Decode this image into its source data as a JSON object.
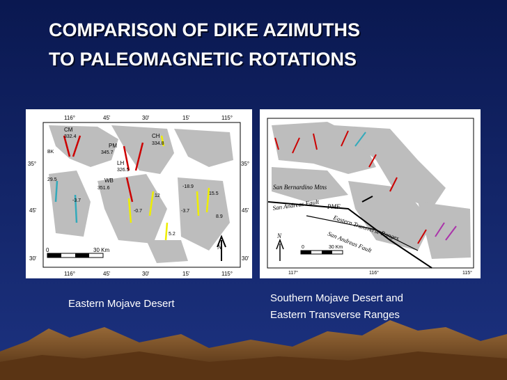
{
  "title": {
    "lines": [
      "COMPARISON OF DIKE AZIMUTHS",
      "TO PALEOMAGNETIC ROTATIONS"
    ]
  },
  "left_map": {
    "labels": [
      "116°",
      "45'",
      "30'",
      "15'",
      "115°",
      "35°",
      "35°",
      "45'",
      "45'",
      "30'",
      "30'",
      "116°",
      "45'",
      "30'",
      "15'",
      "115°",
      "CM",
      "332.4",
      "BK",
      "PM",
      "345.7",
      "CH",
      "334.8",
      "LH",
      "326.5",
      "WB",
      "351.6",
      "29.5",
      "-3.7",
      "-18.9",
      "15.5",
      "-3.7",
      "8.9",
      "12",
      "-0.7",
      "5.2",
      "0",
      "30 Km",
      "N"
    ]
  },
  "right_map": {
    "labels": [
      "San Bernardino Mtns",
      "San Andreas Fault",
      "PMF",
      "Eastern Transverse Ranges",
      "San Andreas Fault",
      "0",
      "30 Km",
      "N",
      "117°",
      "116°",
      "115°"
    ]
  },
  "captions": {
    "left": "Eastern Mojave Desert",
    "right": [
      "Southern Mojave Desert and",
      "Eastern Transverse Ranges"
    ]
  }
}
